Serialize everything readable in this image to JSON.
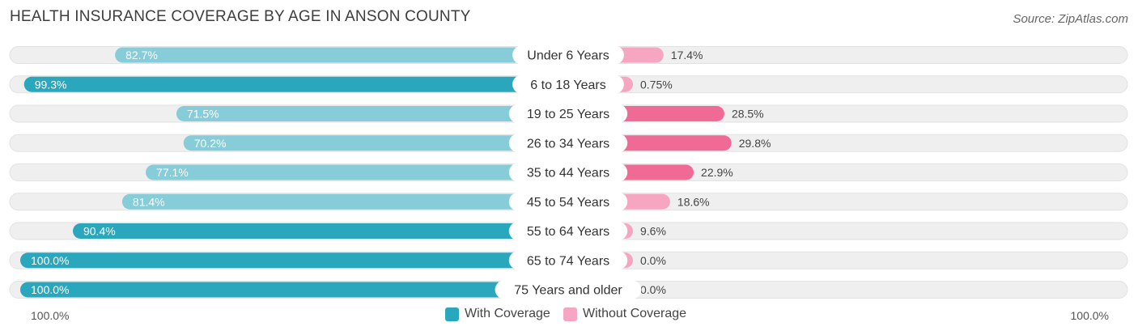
{
  "header": {
    "title": "HEALTH INSURANCE COVERAGE BY AGE IN ANSON COUNTY",
    "source": "Source: ZipAtlas.com"
  },
  "colors": {
    "with_dark": "#2aa6bd",
    "with_light": "#86ccd9",
    "without_dark": "#f06a96",
    "without_light": "#f6a6c0",
    "track": "#efefef"
  },
  "legend": {
    "with_label": "With Coverage",
    "without_label": "Without Coverage",
    "axis_left": "100.0%",
    "axis_right": "100.0%"
  },
  "chart_data": {
    "type": "bar",
    "orientation": "horizontal-diverging",
    "title": "HEALTH INSURANCE COVERAGE BY AGE IN ANSON COUNTY",
    "categories": [
      "Under 6 Years",
      "6 to 18 Years",
      "19 to 25 Years",
      "26 to 34 Years",
      "35 to 44 Years",
      "45 to 54 Years",
      "55 to 64 Years",
      "65 to 74 Years",
      "75 Years and older"
    ],
    "series": [
      {
        "name": "With Coverage",
        "values": [
          82.7,
          99.3,
          71.5,
          70.2,
          77.1,
          81.4,
          90.4,
          100.0,
          100.0
        ],
        "labels": [
          "82.7%",
          "99.3%",
          "71.5%",
          "70.2%",
          "77.1%",
          "81.4%",
          "90.4%",
          "100.0%",
          "100.0%"
        ]
      },
      {
        "name": "Without Coverage",
        "values": [
          17.4,
          0.75,
          28.5,
          29.8,
          22.9,
          18.6,
          9.6,
          0.0,
          0.0
        ],
        "labels": [
          "17.4%",
          "0.75%",
          "28.5%",
          "29.8%",
          "22.9%",
          "18.6%",
          "9.6%",
          "0.0%",
          "0.0%"
        ]
      }
    ],
    "xlim": [
      -100,
      100
    ],
    "legend_position": "bottom-center"
  }
}
